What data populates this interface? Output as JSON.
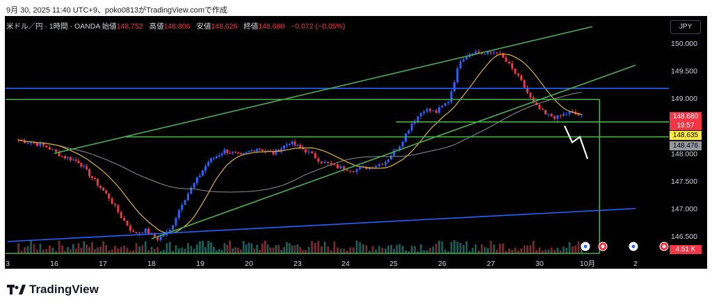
{
  "caption": "9月 30, 2025 11:40 UTC+9、poko0813がTradingView.comで作成",
  "header": {
    "symbol": "米ドル／円 · 1時間 · OANDA",
    "open_label": "始値",
    "open": "148.752",
    "high_label": "高値",
    "high": "148.806",
    "low_label": "安値",
    "low": "148.626",
    "close_label": "終値",
    "close": "148.680",
    "change": "−0.072 (−0.05%)"
  },
  "currency_button": "JPY",
  "brand": "TradingView",
  "price_tags": {
    "last": "148.680",
    "countdown": "19:57",
    "level_yellow": "148.635",
    "level_gray": "148.476",
    "volume": "4.51 K"
  },
  "colors": {
    "background": "#000000",
    "up": "#2962ff",
    "down": "#f23645",
    "ma_fast": "#e0b43a",
    "ma_slow": "#b2b5be",
    "trendline_green": "#4caf50",
    "hline_blue": "#2962ff"
  },
  "chart_data": {
    "type": "candlestick",
    "symbol": "USD/JPY",
    "timeframe": "1H",
    "y_axis": {
      "ticks": [
        150.0,
        149.5,
        149.0,
        148.5,
        148.0,
        147.5,
        147.0,
        146.5
      ],
      "tick_labels": [
        "150.000",
        "149.500",
        "149.000",
        "148.500",
        "148.000",
        "147.500",
        "147.000",
        "146.500"
      ]
    },
    "x_axis": {
      "tick_labels": [
        "3",
        "16",
        "17",
        "18",
        "19",
        "20",
        "23",
        "24",
        "25",
        "26",
        "27",
        "30",
        "10月",
        "2"
      ]
    },
    "close_path": [
      [
        "3",
        148.25
      ],
      [
        "3",
        148.2
      ],
      [
        "3",
        148.12
      ],
      [
        "16",
        147.95
      ],
      [
        "16",
        147.85
      ],
      [
        "16",
        147.5
      ],
      [
        "17",
        147.2
      ],
      [
        "17",
        146.85
      ],
      [
        "17",
        146.55
      ],
      [
        "17",
        146.6
      ],
      [
        "18",
        146.45
      ],
      [
        "18",
        146.6
      ],
      [
        "18",
        147.1
      ],
      [
        "18",
        147.45
      ],
      [
        "19",
        147.85
      ],
      [
        "19",
        148.05
      ],
      [
        "19",
        147.95
      ],
      [
        "20",
        148.1
      ],
      [
        "20",
        148.0
      ],
      [
        "20",
        148.2
      ],
      [
        "23",
        148.05
      ],
      [
        "23",
        147.85
      ],
      [
        "23",
        147.75
      ],
      [
        "24",
        147.7
      ],
      [
        "24",
        147.75
      ],
      [
        "24",
        147.85
      ],
      [
        "25",
        148.15
      ],
      [
        "25",
        148.55
      ],
      [
        "25",
        148.8
      ],
      [
        "25",
        148.75
      ],
      [
        "26",
        148.95
      ],
      [
        "26",
        149.7
      ],
      [
        "26",
        149.85
      ],
      [
        "26",
        149.8
      ],
      [
        "27",
        149.85
      ],
      [
        "27",
        149.6
      ],
      [
        "27",
        149.3
      ],
      [
        "27",
        148.9
      ],
      [
        "30",
        148.7
      ],
      [
        "30",
        148.65
      ],
      [
        "30",
        148.75
      ],
      [
        "30",
        148.68
      ]
    ],
    "horizontal_levels": [
      {
        "price": 149.18,
        "color": "blue"
      },
      {
        "price": 148.98,
        "color": "green"
      },
      {
        "price": 148.57,
        "color": "green"
      },
      {
        "price": 148.3,
        "color": "green"
      }
    ],
    "trendlines": [
      {
        "color": "green",
        "from": [
          "16",
          148.0
        ],
        "to": [
          "10月",
          150.3
        ]
      },
      {
        "color": "green",
        "from": [
          "18",
          146.45
        ],
        "to": [
          "2",
          149.6
        ]
      },
      {
        "color": "blue",
        "from": [
          "3",
          146.4
        ],
        "to": [
          "2",
          147.0
        ]
      }
    ],
    "projection": [
      [
        "30",
        148.5
      ],
      [
        "10月",
        148.2
      ],
      [
        "10月",
        148.3
      ],
      [
        "10月",
        147.9
      ]
    ],
    "last_price": 148.68,
    "volume_last": "4.51 K",
    "grid": false
  }
}
